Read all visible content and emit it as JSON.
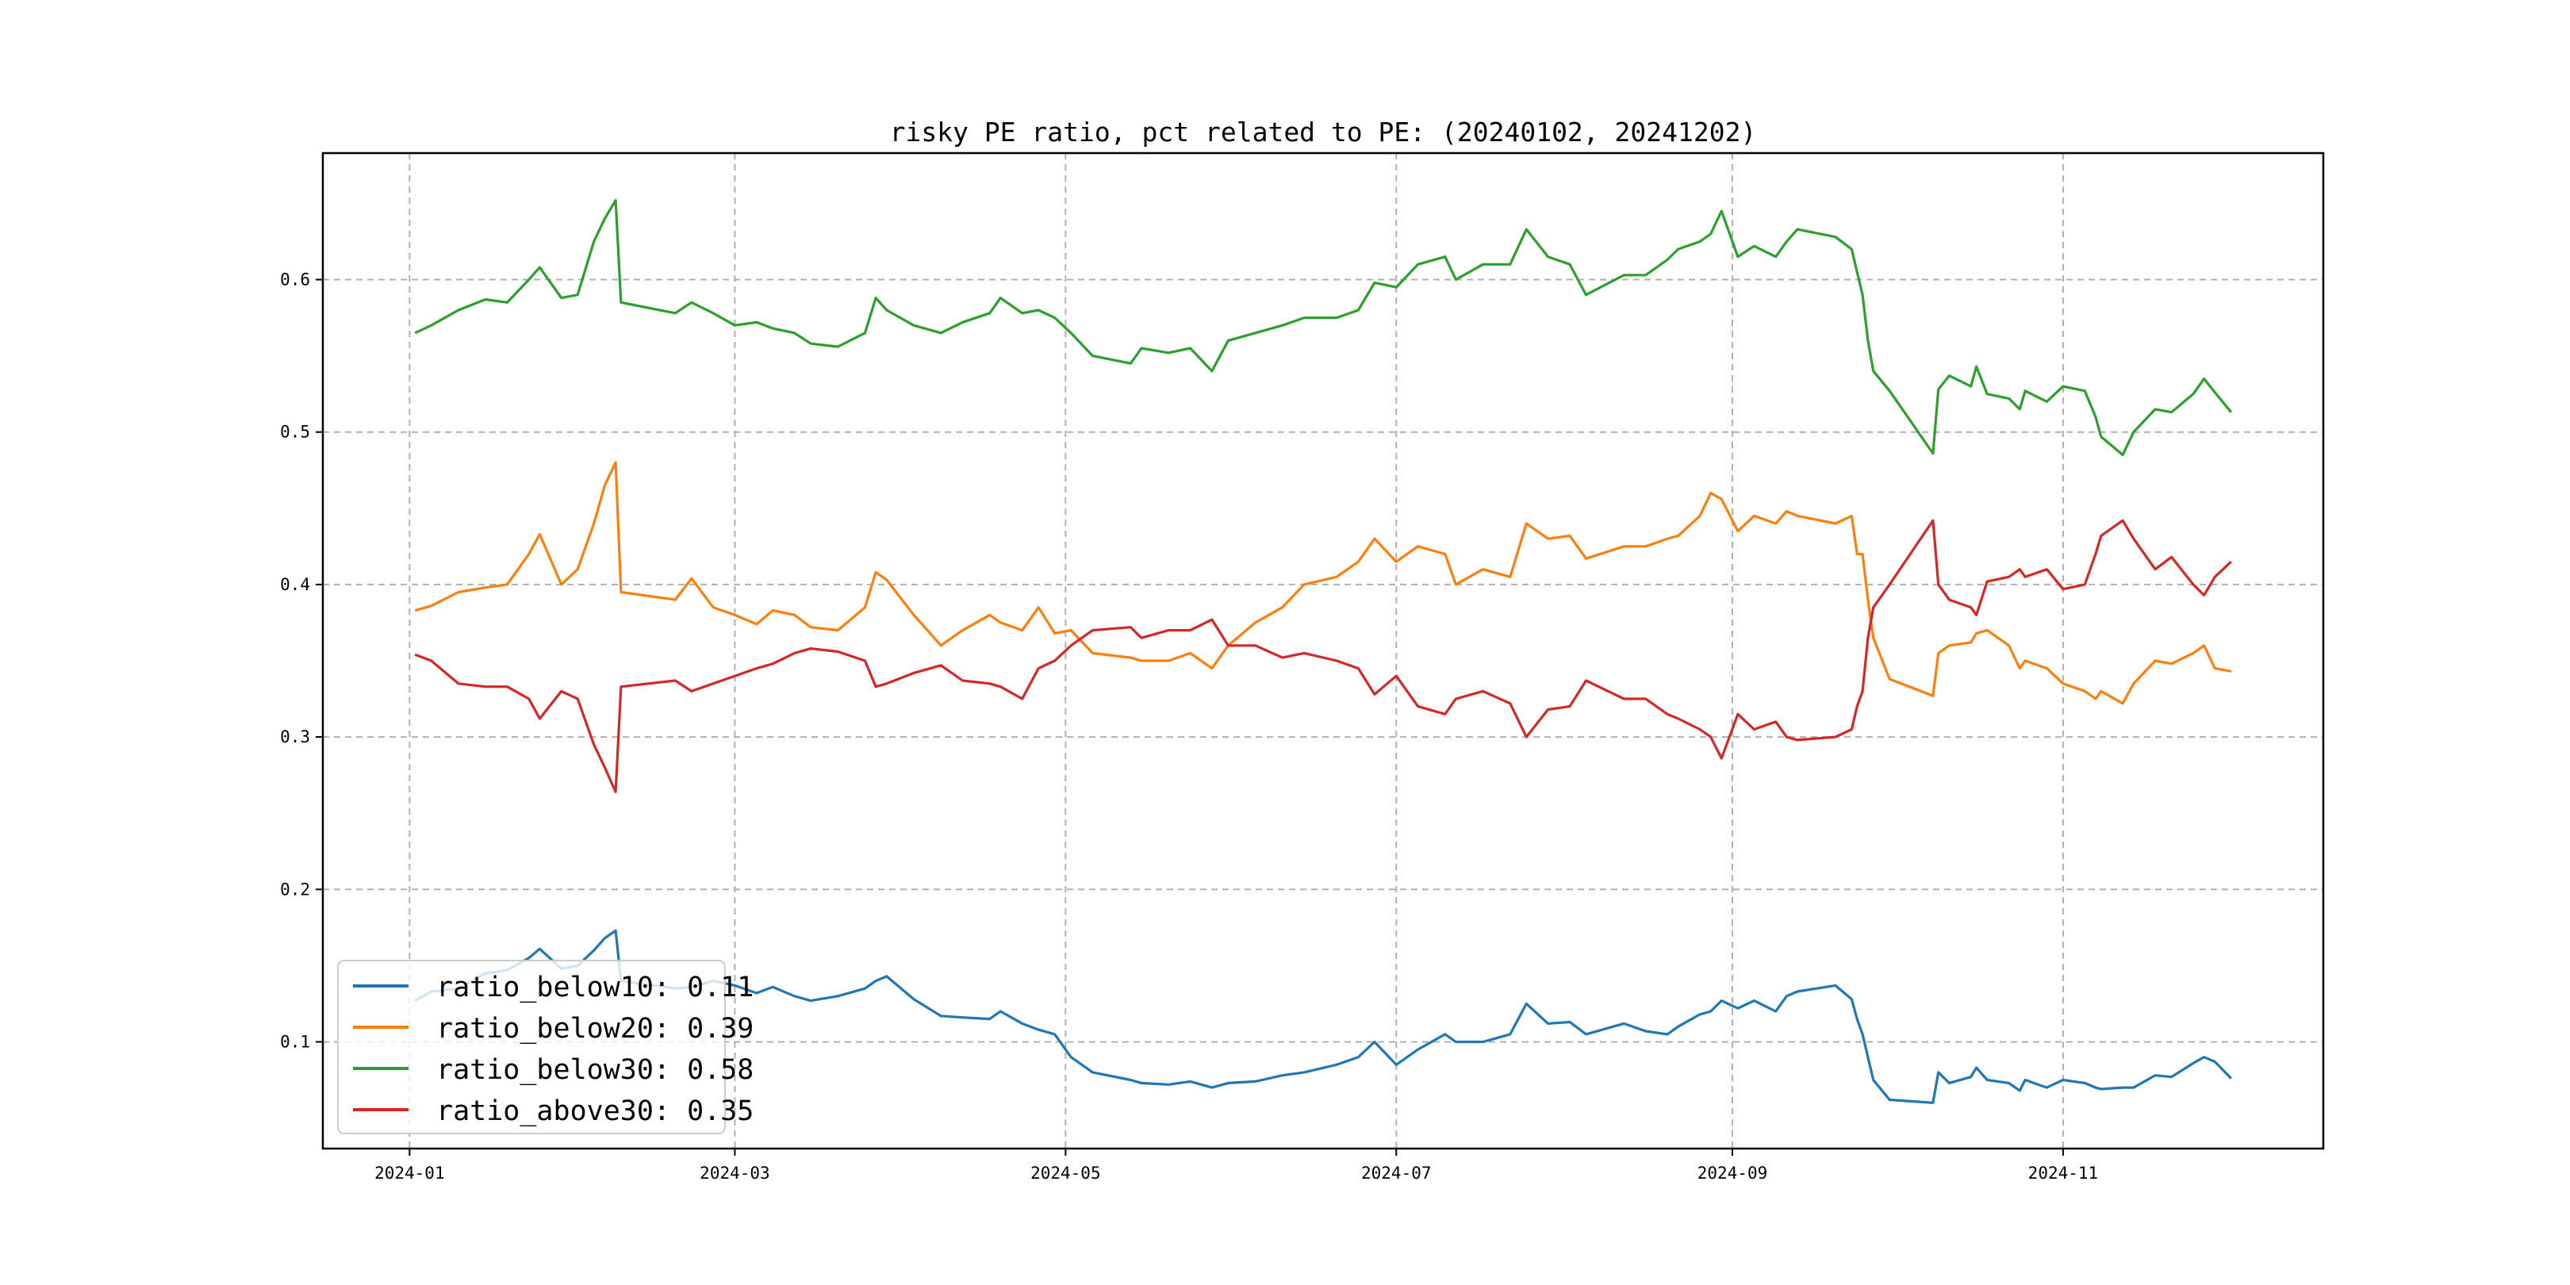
{
  "chart_data": {
    "type": "line",
    "title": "risky PE ratio, pct related to PE: (20240102, 20241202)",
    "xlabel": "",
    "ylabel": "",
    "xlim": [
      "2023-12-16",
      "2024-12-19"
    ],
    "ylim": [
      0.03,
      0.683
    ],
    "grid": true,
    "legend_position": "lower-left",
    "x_ticks": [
      "2024-01",
      "2024-03",
      "2024-05",
      "2024-07",
      "2024-09",
      "2024-11"
    ],
    "y_ticks": [
      "0.1",
      "0.2",
      "0.3",
      "0.4",
      "0.5",
      "0.6"
    ],
    "x": [
      "2024-01-02",
      "2024-01-05",
      "2024-01-10",
      "2024-01-15",
      "2024-01-19",
      "2024-01-23",
      "2024-01-25",
      "2024-01-29",
      "2024-02-01",
      "2024-02-04",
      "2024-02-06",
      "2024-02-08",
      "2024-02-09",
      "2024-02-19",
      "2024-02-22",
      "2024-02-26",
      "2024-03-01",
      "2024-03-05",
      "2024-03-08",
      "2024-03-12",
      "2024-03-15",
      "2024-03-20",
      "2024-03-25",
      "2024-03-27",
      "2024-03-29",
      "2024-04-03",
      "2024-04-08",
      "2024-04-12",
      "2024-04-17",
      "2024-04-19",
      "2024-04-23",
      "2024-04-26",
      "2024-04-29",
      "2024-05-02",
      "2024-05-06",
      "2024-05-13",
      "2024-05-15",
      "2024-05-20",
      "2024-05-24",
      "2024-05-28",
      "2024-05-31",
      "2024-06-05",
      "2024-06-10",
      "2024-06-14",
      "2024-06-20",
      "2024-06-24",
      "2024-06-27",
      "2024-07-01",
      "2024-07-05",
      "2024-07-10",
      "2024-07-12",
      "2024-07-17",
      "2024-07-22",
      "2024-07-25",
      "2024-07-29",
      "2024-08-02",
      "2024-08-05",
      "2024-08-12",
      "2024-08-16",
      "2024-08-20",
      "2024-08-22",
      "2024-08-26",
      "2024-08-28",
      "2024-08-30",
      "2024-09-02",
      "2024-09-05",
      "2024-09-09",
      "2024-09-11",
      "2024-09-13",
      "2024-09-20",
      "2024-09-23",
      "2024-09-24",
      "2024-09-25",
      "2024-09-26",
      "2024-09-27",
      "2024-09-30",
      "2024-10-08",
      "2024-10-09",
      "2024-10-11",
      "2024-10-15",
      "2024-10-16",
      "2024-10-18",
      "2024-10-22",
      "2024-10-24",
      "2024-10-25",
      "2024-10-29",
      "2024-11-01",
      "2024-11-05",
      "2024-11-07",
      "2024-11-08",
      "2024-11-12",
      "2024-11-14",
      "2024-11-18",
      "2024-11-21",
      "2024-11-25",
      "2024-11-27",
      "2024-11-29",
      "2024-12-02"
    ],
    "series": [
      {
        "name": "ratio_below10",
        "legend_label": "ratio_below10: 0.11",
        "color": "#1f77b4",
        "values": [
          0.127,
          0.133,
          0.135,
          0.145,
          0.147,
          0.155,
          0.161,
          0.148,
          0.15,
          0.16,
          0.168,
          0.173,
          0.14,
          0.135,
          0.136,
          0.14,
          0.137,
          0.132,
          0.136,
          0.13,
          0.127,
          0.13,
          0.135,
          0.14,
          0.143,
          0.128,
          0.117,
          0.116,
          0.115,
          0.12,
          0.112,
          0.108,
          0.105,
          0.09,
          0.08,
          0.075,
          0.073,
          0.072,
          0.074,
          0.07,
          0.073,
          0.074,
          0.078,
          0.08,
          0.085,
          0.09,
          0.1,
          0.085,
          0.095,
          0.105,
          0.1,
          0.1,
          0.105,
          0.125,
          0.112,
          0.113,
          0.105,
          0.112,
          0.107,
          0.105,
          0.11,
          0.118,
          0.12,
          0.127,
          0.122,
          0.127,
          0.12,
          0.13,
          0.133,
          0.137,
          0.128,
          0.115,
          0.105,
          0.09,
          0.075,
          0.062,
          0.06,
          0.08,
          0.073,
          0.077,
          0.083,
          0.075,
          0.073,
          0.068,
          0.075,
          0.07,
          0.075,
          0.073,
          0.07,
          0.069,
          0.07,
          0.07,
          0.078,
          0.077,
          0.086,
          0.09,
          0.087,
          0.076
        ]
      },
      {
        "name": "ratio_below20",
        "legend_label": "ratio_below20: 0.39",
        "color": "#ff7f0e",
        "values": [
          0.383,
          0.386,
          0.395,
          0.398,
          0.4,
          0.42,
          0.433,
          0.4,
          0.41,
          0.44,
          0.465,
          0.48,
          0.395,
          0.39,
          0.404,
          0.385,
          0.38,
          0.374,
          0.383,
          0.38,
          0.372,
          0.37,
          0.385,
          0.408,
          0.403,
          0.38,
          0.36,
          0.37,
          0.38,
          0.375,
          0.37,
          0.385,
          0.368,
          0.37,
          0.355,
          0.352,
          0.35,
          0.35,
          0.355,
          0.345,
          0.36,
          0.375,
          0.385,
          0.4,
          0.405,
          0.415,
          0.43,
          0.415,
          0.425,
          0.42,
          0.4,
          0.41,
          0.405,
          0.44,
          0.43,
          0.432,
          0.417,
          0.425,
          0.425,
          0.43,
          0.432,
          0.445,
          0.46,
          0.456,
          0.435,
          0.445,
          0.44,
          0.448,
          0.445,
          0.44,
          0.445,
          0.42,
          0.42,
          0.39,
          0.365,
          0.338,
          0.327,
          0.355,
          0.36,
          0.362,
          0.368,
          0.37,
          0.36,
          0.345,
          0.35,
          0.345,
          0.335,
          0.33,
          0.325,
          0.33,
          0.322,
          0.335,
          0.35,
          0.348,
          0.355,
          0.36,
          0.345,
          0.343
        ]
      },
      {
        "name": "ratio_below30",
        "legend_label": "ratio_below30: 0.58",
        "color": "#2ca02c",
        "values": [
          0.565,
          0.57,
          0.58,
          0.587,
          0.585,
          0.6,
          0.608,
          0.588,
          0.59,
          0.625,
          0.64,
          0.652,
          0.585,
          0.578,
          0.585,
          0.578,
          0.57,
          0.572,
          0.568,
          0.565,
          0.558,
          0.556,
          0.565,
          0.588,
          0.58,
          0.57,
          0.565,
          0.572,
          0.578,
          0.588,
          0.578,
          0.58,
          0.575,
          0.565,
          0.55,
          0.545,
          0.555,
          0.552,
          0.555,
          0.54,
          0.56,
          0.565,
          0.57,
          0.575,
          0.575,
          0.58,
          0.598,
          0.595,
          0.61,
          0.615,
          0.6,
          0.61,
          0.61,
          0.633,
          0.615,
          0.61,
          0.59,
          0.603,
          0.603,
          0.613,
          0.62,
          0.625,
          0.63,
          0.645,
          0.615,
          0.622,
          0.615,
          0.625,
          0.633,
          0.628,
          0.62,
          0.605,
          0.59,
          0.56,
          0.54,
          0.527,
          0.486,
          0.528,
          0.537,
          0.53,
          0.543,
          0.525,
          0.522,
          0.515,
          0.527,
          0.52,
          0.53,
          0.527,
          0.51,
          0.497,
          0.485,
          0.5,
          0.515,
          0.513,
          0.525,
          0.535,
          0.526,
          0.513
        ]
      },
      {
        "name": "ratio_above30",
        "legend_label": "ratio_above30: 0.35",
        "color": "#d62728",
        "values": [
          0.354,
          0.35,
          0.335,
          0.333,
          0.333,
          0.325,
          0.312,
          0.33,
          0.325,
          0.295,
          0.28,
          0.264,
          0.333,
          0.337,
          0.33,
          0.335,
          0.34,
          0.345,
          0.348,
          0.355,
          0.358,
          0.356,
          0.35,
          0.333,
          0.335,
          0.342,
          0.347,
          0.337,
          0.335,
          0.333,
          0.325,
          0.345,
          0.35,
          0.36,
          0.37,
          0.372,
          0.365,
          0.37,
          0.37,
          0.377,
          0.36,
          0.36,
          0.352,
          0.355,
          0.35,
          0.345,
          0.328,
          0.34,
          0.32,
          0.315,
          0.325,
          0.33,
          0.322,
          0.3,
          0.318,
          0.32,
          0.337,
          0.325,
          0.325,
          0.315,
          0.312,
          0.305,
          0.3,
          0.286,
          0.315,
          0.305,
          0.31,
          0.3,
          0.298,
          0.3,
          0.305,
          0.32,
          0.33,
          0.365,
          0.385,
          0.4,
          0.442,
          0.4,
          0.39,
          0.385,
          0.38,
          0.402,
          0.405,
          0.41,
          0.405,
          0.41,
          0.397,
          0.4,
          0.42,
          0.432,
          0.442,
          0.43,
          0.41,
          0.418,
          0.4,
          0.393,
          0.405,
          0.415
        ]
      }
    ]
  }
}
